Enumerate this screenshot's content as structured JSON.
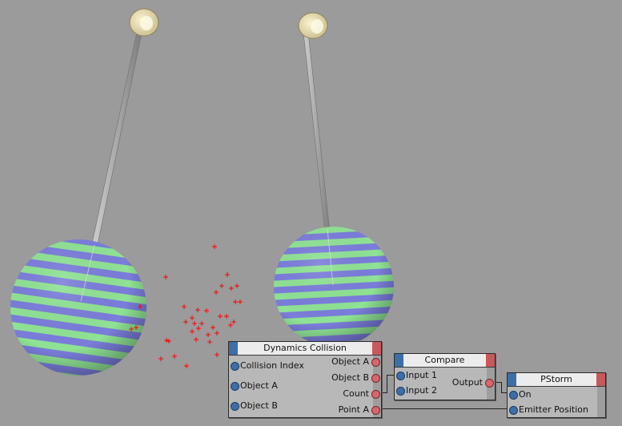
{
  "colors": {
    "background": "#9b9b9b",
    "stripe_blue": "#7b7ddb",
    "stripe_green": "#8fe394",
    "particle": "#ff0000",
    "input_port": "#3c6fa8",
    "output_port": "#d8666a"
  },
  "nodes": {
    "dynamics_collision": {
      "title": "Dynamics Collision",
      "inputs": [
        "Collision Index",
        "Object A",
        "Object B"
      ],
      "outputs": [
        "Object A",
        "Object B",
        "Count",
        "Point A"
      ]
    },
    "compare": {
      "title": "Compare",
      "inputs": [
        "Input 1",
        "Input 2"
      ],
      "outputs": [
        "Output"
      ]
    },
    "pstorm": {
      "title": "PStorm",
      "inputs": [
        "On",
        "Emitter Position"
      ],
      "outputs": []
    }
  }
}
